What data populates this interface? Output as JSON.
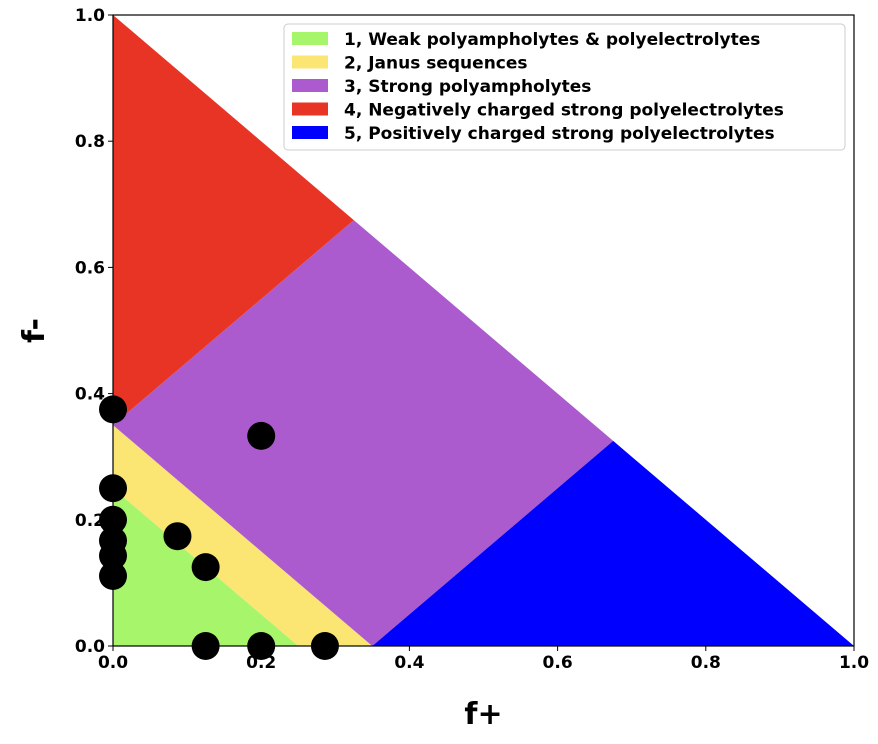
{
  "chart_data": {
    "type": "scatter",
    "xlabel": "f+",
    "ylabel": "f-",
    "xlim": [
      0.0,
      1.0
    ],
    "ylim": [
      0.0,
      1.0
    ],
    "xticks": [
      "0.0",
      "0.2",
      "0.4",
      "0.6",
      "0.8",
      "1.0"
    ],
    "yticks": [
      "0.0",
      "0.2",
      "0.4",
      "0.6",
      "0.8",
      "1.0"
    ],
    "grid": false,
    "legend_position": "top-right",
    "regions": [
      {
        "name": "1, Weak polyampholytes & polyelectrolytes",
        "color": "#a6f56a",
        "vertices": [
          [
            0,
            0
          ],
          [
            0.25,
            0
          ],
          [
            0,
            0.25
          ]
        ]
      },
      {
        "name": "2, Janus sequences",
        "color": "#fbe573",
        "vertices": [
          [
            0.25,
            0
          ],
          [
            0.35,
            0
          ],
          [
            0,
            0.35
          ],
          [
            0,
            0.25
          ]
        ]
      },
      {
        "name": "3, Strong polyampholytes",
        "color": "#ab5bcd",
        "vertices": [
          [
            0.35,
            0
          ],
          [
            0.675,
            0.325
          ],
          [
            0.325,
            0.675
          ],
          [
            0,
            0.35
          ]
        ]
      },
      {
        "name": "4, Negatively charged strong polyelectrolytes",
        "color": "#e83425",
        "vertices": [
          [
            0,
            0.35
          ],
          [
            0.325,
            0.675
          ],
          [
            0,
            1.0
          ]
        ]
      },
      {
        "name": "5, Positively charged strong polyelectrolytes",
        "color": "#0000ff",
        "vertices": [
          [
            0.35,
            0
          ],
          [
            1.0,
            0
          ],
          [
            0.675,
            0.325
          ]
        ]
      }
    ],
    "points": {
      "color": "#000000",
      "x": [
        0.0,
        0.0,
        0.0,
        0.0,
        0.0,
        0.0,
        0.2,
        0.087,
        0.125,
        0.125,
        0.2,
        0.286
      ],
      "y": [
        0.375,
        0.25,
        0.2,
        0.167,
        0.143,
        0.111,
        0.333,
        0.174,
        0.125,
        0.0,
        0.0,
        0.0
      ]
    }
  }
}
